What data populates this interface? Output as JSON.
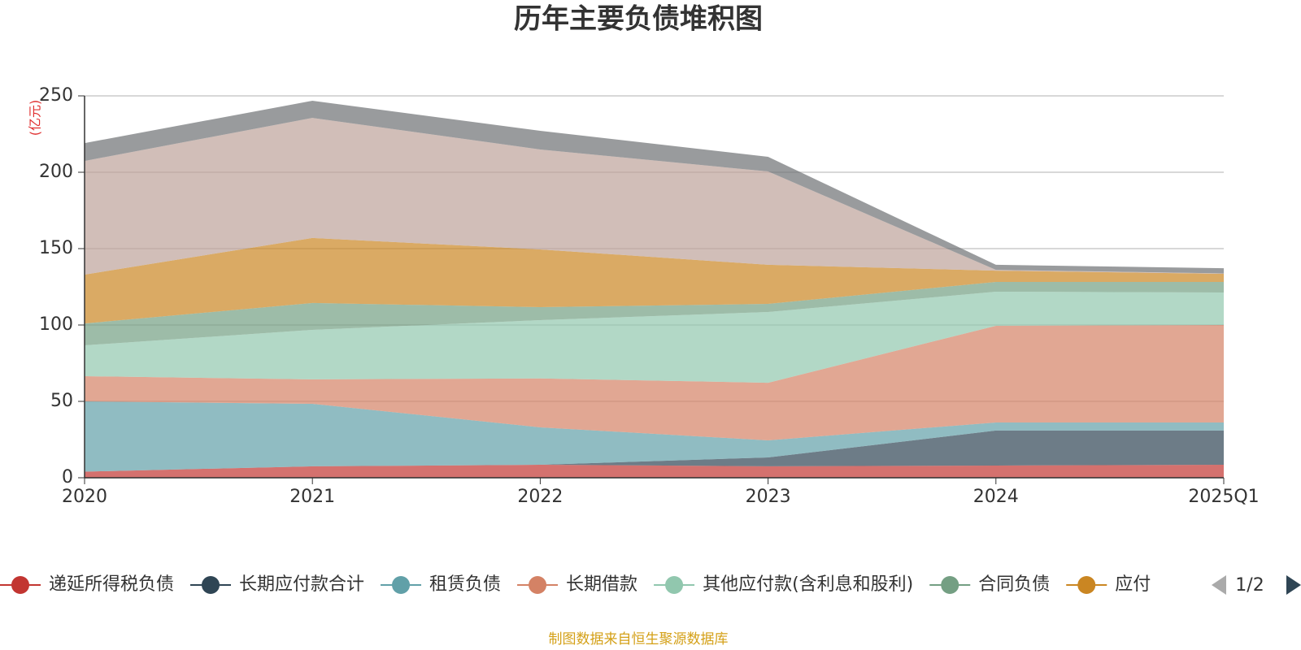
{
  "chart_data": {
    "type": "stacked-area",
    "title": "历年主要负债堆积图",
    "y_unit": "(亿元)",
    "categories": [
      "2020",
      "2021",
      "2022",
      "2023",
      "2024",
      "2025Q1"
    ],
    "ylim": [
      0,
      250
    ],
    "yticks": [
      0,
      50,
      100,
      150,
      200,
      250
    ],
    "grid": true,
    "series": [
      {
        "name": "递延所得税负债",
        "color": "#c23531",
        "values": [
          4,
          7.5,
          8.5,
          7.5,
          8,
          8.5
        ]
      },
      {
        "name": "长期应付款合计",
        "color": "#2f4554",
        "values": [
          0,
          0,
          0,
          5.8,
          22.9,
          22.4
        ]
      },
      {
        "name": "租赁负债",
        "color": "#61a0a8",
        "values": [
          46,
          40.9,
          24.5,
          11.2,
          5.3,
          5.3
        ]
      },
      {
        "name": "长期借款",
        "color": "#d48265",
        "values": [
          16.5,
          16,
          32,
          37.7,
          63.3,
          63.8
        ]
      },
      {
        "name": "其他应付款(含利息和股利)",
        "color": "#91c7ae",
        "values": [
          20.2,
          32.4,
          38.2,
          46.3,
          22.3,
          21.3
        ]
      },
      {
        "name": "合同负债",
        "color": "#749f83",
        "values": [
          14.3,
          17.6,
          8.5,
          5.3,
          6.4,
          6.9
        ]
      },
      {
        "name": "应付",
        "color": "#ca8622",
        "values": [
          32,
          42.6,
          37.8,
          25.6,
          7.4,
          5.3
        ]
      },
      {
        "color": "#bda29a",
        "values": [
          74.4,
          78.6,
          65.4,
          61.1,
          0.5,
          0.3
        ]
      },
      {
        "color": "#6e7074",
        "values": [
          11.7,
          11.2,
          12.2,
          9.6,
          3.3,
          3.4
        ]
      }
    ],
    "legend_page": "1/2",
    "source": "制图数据来自恒生聚源数据库"
  }
}
